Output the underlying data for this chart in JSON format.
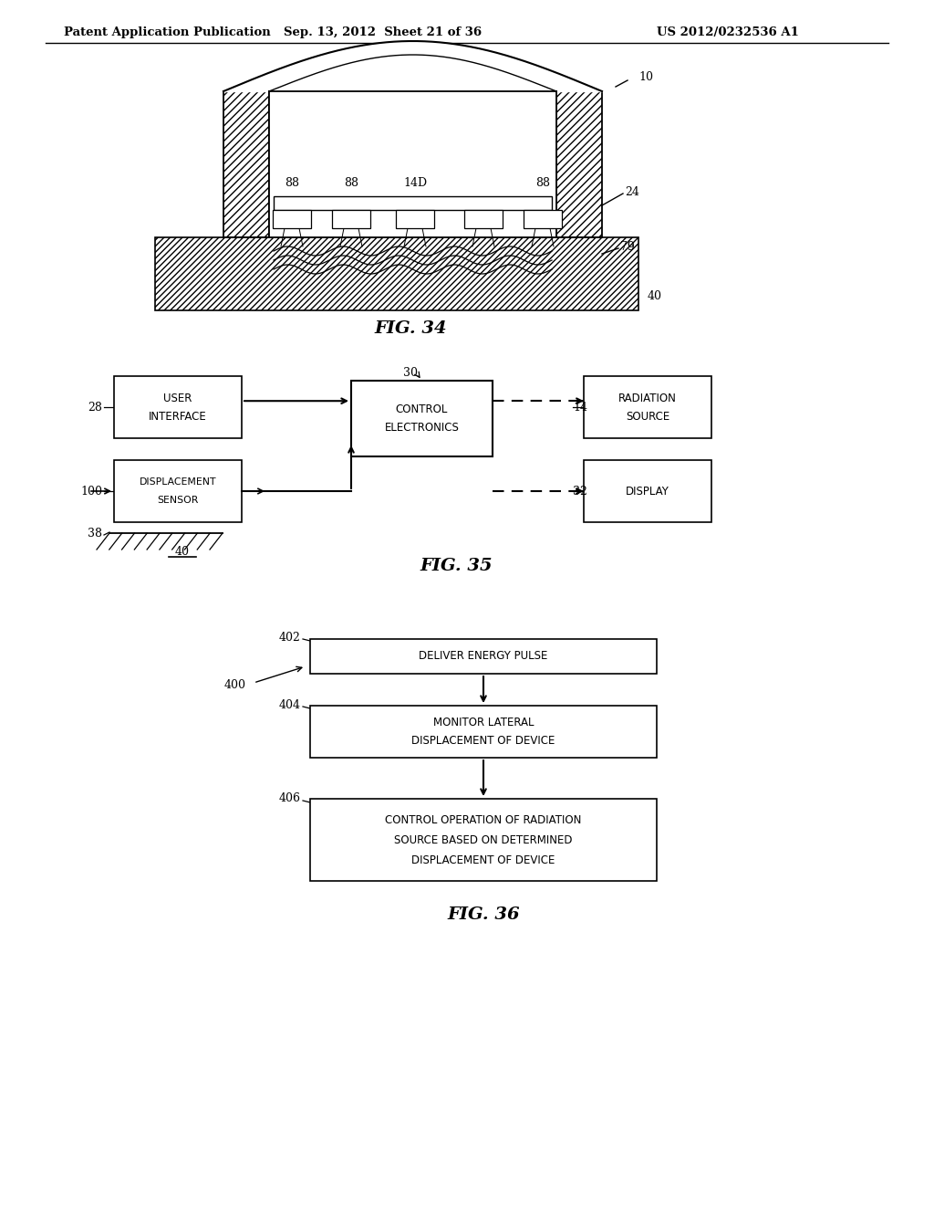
{
  "header_left": "Patent Application Publication",
  "header_mid": "Sep. 13, 2012  Sheet 21 of 36",
  "header_right": "US 2012/0232536 A1",
  "fig34_label": "FIG. 34",
  "fig35_label": "FIG. 35",
  "fig36_label": "FIG. 36",
  "bg_color": "#ffffff",
  "line_color": "#000000"
}
